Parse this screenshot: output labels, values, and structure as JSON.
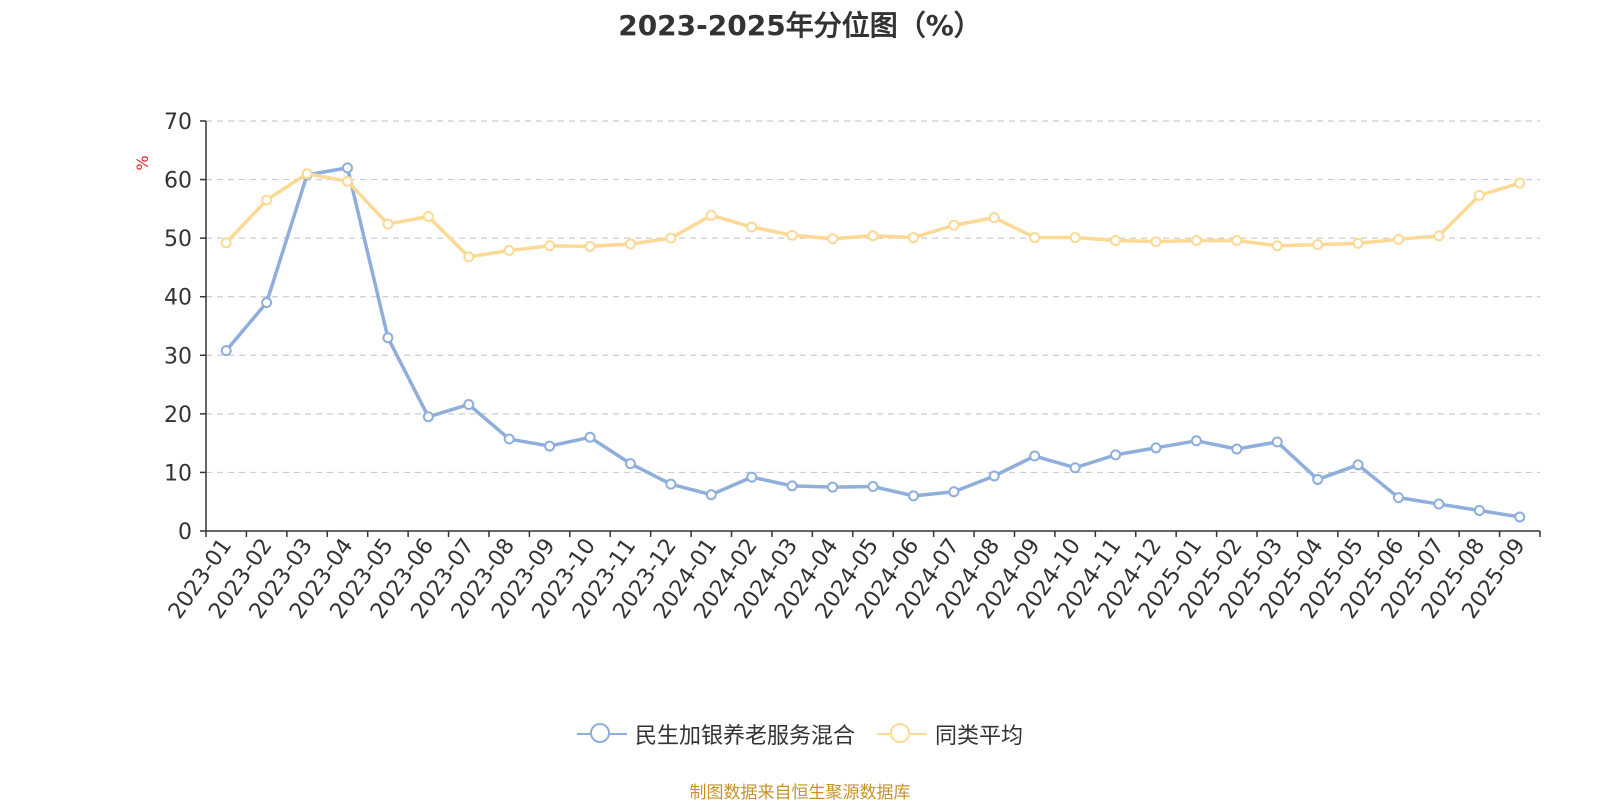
{
  "chart_data": {
    "type": "line",
    "title": "2023-2025年分位图（%）",
    "xlabel": "",
    "ylabel": "%",
    "ylim": [
      0,
      70
    ],
    "yticks": [
      0,
      10,
      20,
      30,
      40,
      50,
      60,
      70
    ],
    "grid": "horizontal dashed",
    "legend_position": "bottom",
    "categories": [
      "2023-01",
      "2023-02",
      "2023-03",
      "2023-04",
      "2023-05",
      "2023-06",
      "2023-07",
      "2023-08",
      "2023-09",
      "2023-10",
      "2023-11",
      "2023-12",
      "2024-01",
      "2024-02",
      "2024-03",
      "2024-04",
      "2024-05",
      "2024-06",
      "2024-07",
      "2024-08",
      "2024-09",
      "2024-10",
      "2024-11",
      "2024-12",
      "2025-01",
      "2025-02",
      "2025-03",
      "2025-04",
      "2025-05",
      "2025-06",
      "2025-07",
      "2025-08",
      "2025-09"
    ],
    "series": [
      {
        "name": "民生加银养老服务混合",
        "color": "#8eaedb",
        "values": [
          30.8,
          39.0,
          60.8,
          62.0,
          33.0,
          19.5,
          21.6,
          15.7,
          14.5,
          16.0,
          11.5,
          8.0,
          6.2,
          9.2,
          7.7,
          7.5,
          7.6,
          6.0,
          6.7,
          9.4,
          12.8,
          10.8,
          13.0,
          14.2,
          15.4,
          14.0,
          15.2,
          8.8,
          11.3,
          5.7,
          4.6,
          3.5,
          2.4
        ]
      },
      {
        "name": "同类平均",
        "color": "#fcd994",
        "values": [
          49.2,
          56.5,
          61.0,
          59.7,
          52.4,
          53.7,
          46.8,
          47.9,
          48.7,
          48.6,
          49.0,
          50.0,
          53.9,
          51.9,
          50.5,
          49.9,
          50.4,
          50.1,
          52.2,
          53.5,
          50.1,
          50.1,
          49.6,
          49.4,
          49.6,
          49.6,
          48.7,
          48.9,
          49.1,
          49.8,
          50.4,
          57.3,
          59.4
        ]
      }
    ]
  },
  "source_note": "制图数据来自恒生聚源数据库"
}
